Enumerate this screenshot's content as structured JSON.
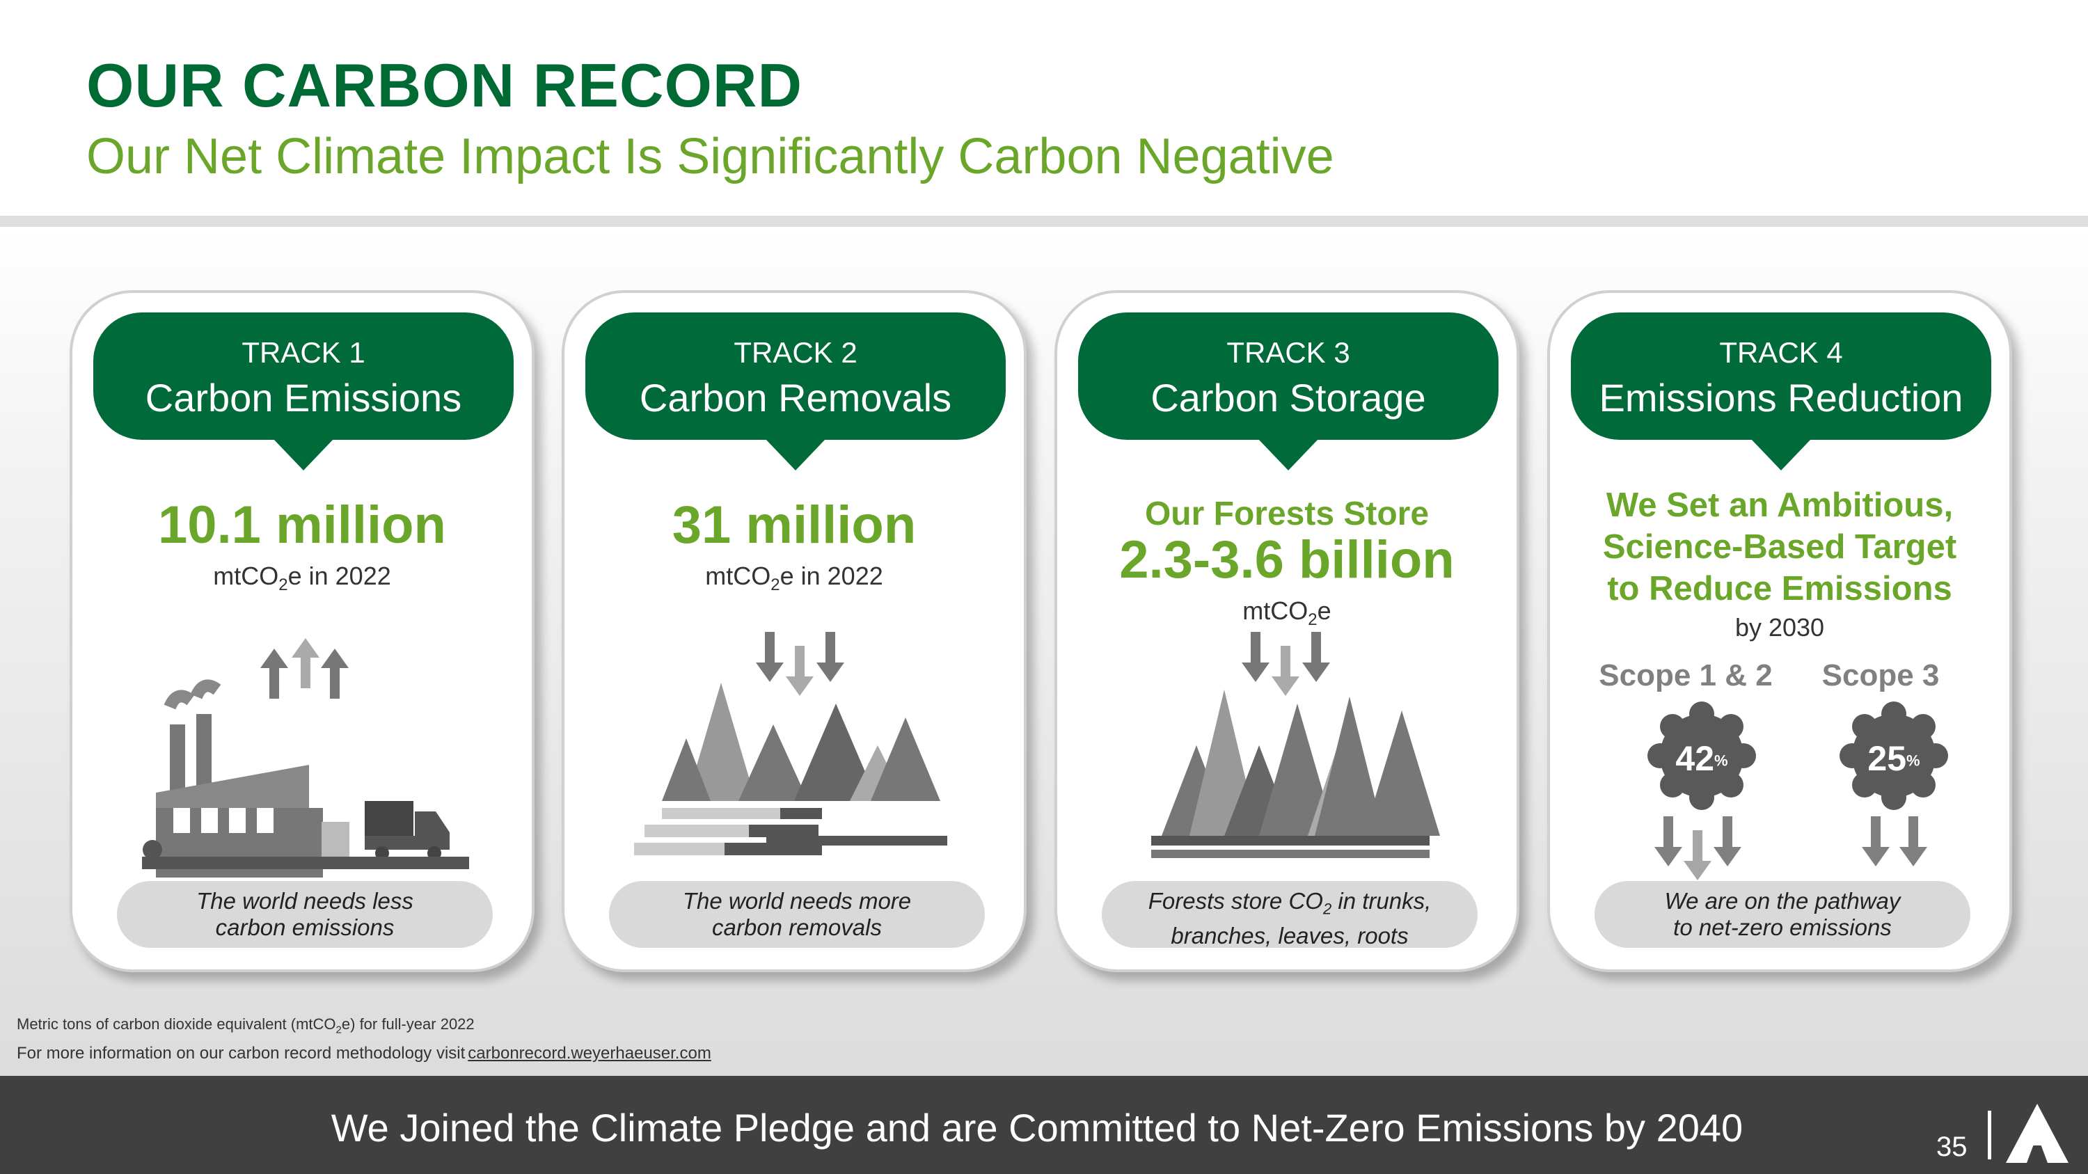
{
  "header": {
    "title": "OUR CARBON RECORD",
    "subtitle": "Our Net Climate Impact Is Significantly Carbon Negative"
  },
  "tracks": [
    {
      "track": "TRACK 1",
      "name": "Carbon Emissions",
      "value": "10.1 million",
      "unit_pre": "mtCO",
      "unit_sub": "2",
      "unit_post": "e in 2022",
      "note_l1": "The world needs less",
      "note_l2": "carbon emissions",
      "icon": "factory-emissions-icon"
    },
    {
      "track": "TRACK 2",
      "name": "Carbon Removals",
      "value": "31 million",
      "unit_pre": "mtCO",
      "unit_sub": "2",
      "unit_post": "e in 2022",
      "note_l1": "The world needs more",
      "note_l2": "carbon removals",
      "icon": "forest-lumber-icon"
    },
    {
      "track": "TRACK 3",
      "name": "Carbon Storage",
      "lead": "Our Forests Store",
      "value": "2.3-3.6 billion",
      "unit_pre": "mtCO",
      "unit_sub": "2",
      "unit_post": "e",
      "note_l1_pre": "Forests store CO",
      "note_l1_sub": "2",
      "note_l1_post": " in trunks,",
      "note_l2": "branches, leaves, roots",
      "icon": "forest-storage-icon"
    },
    {
      "track": "TRACK 4",
      "name": "Emissions Reduction",
      "headline_l1": "We Set an Ambitious,",
      "headline_l2": "Science-Based Target",
      "headline_l3": "to Reduce Emissions",
      "by": "by 2030",
      "scopes": [
        {
          "label": "Scope 1 & 2",
          "value": "42",
          "pct": "%"
        },
        {
          "label": "Scope 3",
          "value": "25",
          "pct": "%"
        }
      ],
      "note_l1": "We are on the pathway",
      "note_l2": "to net-zero emissions"
    }
  ],
  "footnotes": {
    "f1_pre": "Metric tons of carbon dioxide equivalent (mtCO",
    "f1_sub": "2",
    "f1_post": "e) for full-year 2022",
    "f2": "For more information on our carbon record methodology visit",
    "link": "carbonrecord.weyerhaeuser.com"
  },
  "footer": {
    "message": "We Joined the Climate Pledge and are Committed to Net-Zero Emissions by 2040",
    "page": "35"
  },
  "colors": {
    "dark_green": "#006a3a",
    "light_green": "#6aa629",
    "bar": "#404040"
  }
}
